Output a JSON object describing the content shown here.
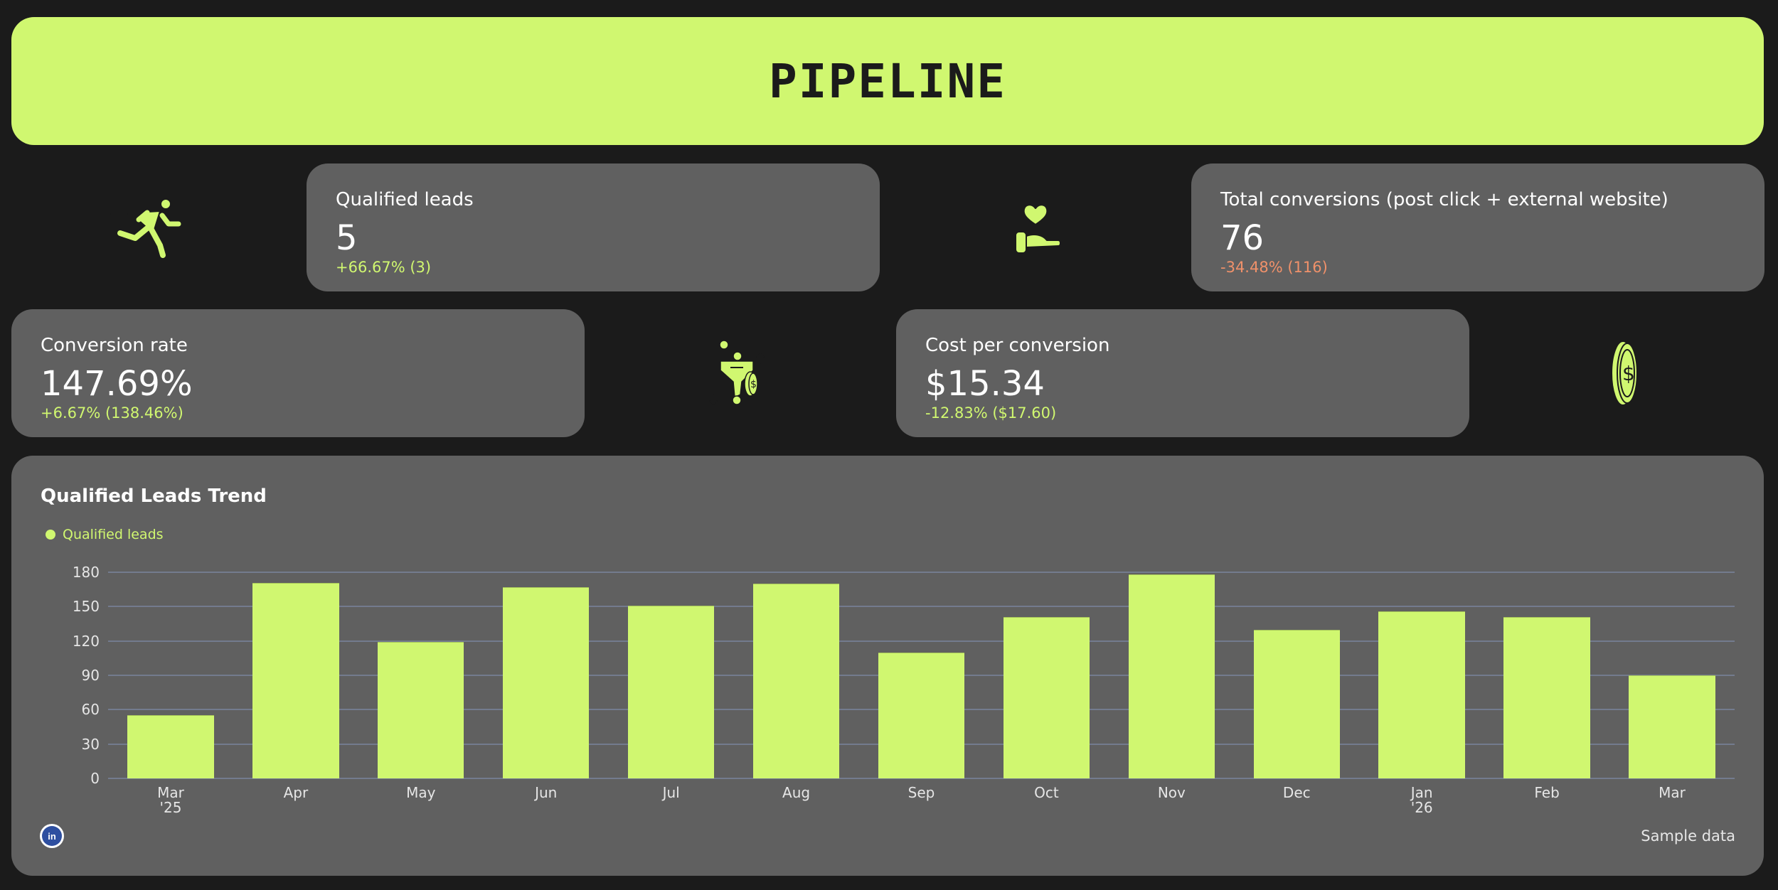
{
  "header": {
    "title": "PIPELINE"
  },
  "colors": {
    "accent": "#d0f770",
    "positive": "#d0f770",
    "negative": "#f0916a",
    "card_bg": "#606060",
    "page_bg": "#1b1b1b",
    "gridline": "#737b8e"
  },
  "kpis": [
    {
      "label": "Qualified leads",
      "value": "5",
      "delta": "+66.67% (3)",
      "trend": "positive",
      "icon": "running-person-icon"
    },
    {
      "label": "Total conversions (post click + external website)",
      "value": "76",
      "delta": "-34.48% (116)",
      "trend": "negative",
      "icon": "hand-heart-icon"
    },
    {
      "label": "Conversion rate",
      "value": "147.69%",
      "delta": "+6.67% (138.46%)",
      "trend": "positive",
      "icon": "funnel-coin-icon"
    },
    {
      "label": "Cost per conversion",
      "value": "$15.34",
      "delta": "-12.83% ($17.60)",
      "trend": "positive",
      "icon": "coin-icon"
    }
  ],
  "chart": {
    "title": "Qualified Leads Trend",
    "legend_label": "Qualified leads",
    "footnote": "Sample data",
    "badge": "in"
  },
  "chart_data": {
    "type": "bar",
    "title": "Qualified Leads Trend",
    "xlabel": "",
    "ylabel": "",
    "ylim": [
      0,
      180
    ],
    "yticks": [
      0,
      30,
      60,
      90,
      120,
      150,
      180
    ],
    "grid": true,
    "legend_position": "top-left",
    "categories": [
      "Mar\n'25",
      "Apr",
      "May",
      "Jun",
      "Jul",
      "Aug",
      "Sep",
      "Oct",
      "Nov",
      "Dec",
      "Jan\n'26",
      "Feb",
      "Mar"
    ],
    "series": [
      {
        "name": "Qualified leads",
        "color": "#d0f770",
        "values": [
          55,
          171,
          119,
          167,
          151,
          170,
          110,
          141,
          178,
          130,
          146,
          141,
          90
        ]
      }
    ]
  }
}
